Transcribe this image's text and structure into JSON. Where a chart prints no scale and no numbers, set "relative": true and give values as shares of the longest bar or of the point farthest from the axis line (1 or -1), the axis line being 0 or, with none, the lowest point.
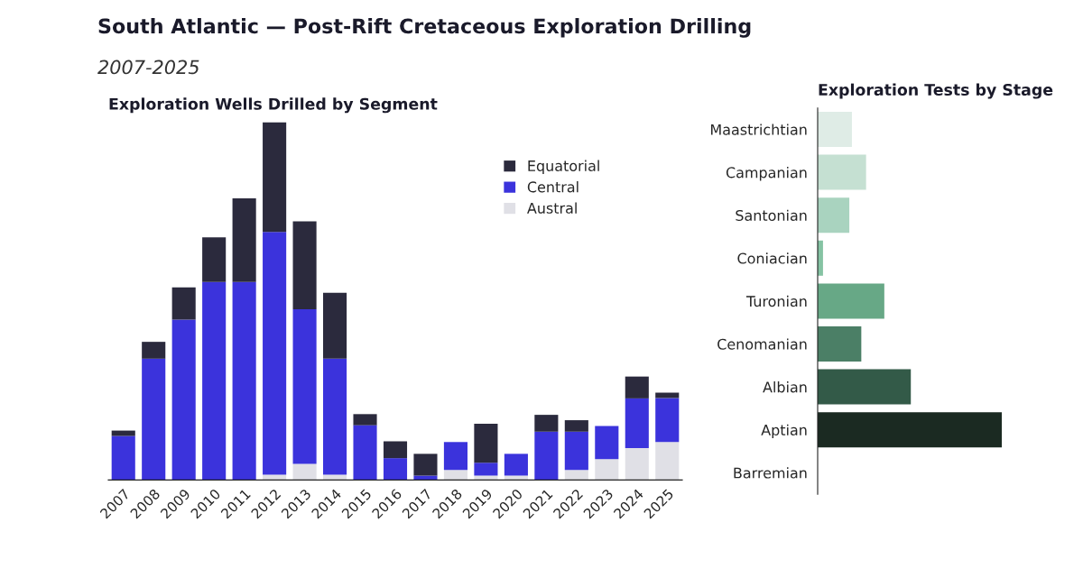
{
  "chart_data": [
    {
      "type": "other",
      "title": "South Atlantic — Post-Rift Cretaceous Exploration Drilling",
      "subtitle": "2007-2025"
    },
    {
      "type": "bar",
      "title": "Exploration Wells Drilled by Segment",
      "relative": true,
      "stacked": true,
      "legend": "top right",
      "grid": false,
      "categories": [
        "2007",
        "2008",
        "2009",
        "2010",
        "2011",
        "2012",
        "2013",
        "2014",
        "2015",
        "2016",
        "2017",
        "2018",
        "2019",
        "2020",
        "2021",
        "2022",
        "2023",
        "2024",
        "2025"
      ],
      "series": [
        {
          "name": "Austral",
          "color": "#e0e0e6",
          "values": [
            0,
            0,
            0,
            0,
            0,
            0.015,
            0.045,
            0.015,
            0,
            0,
            0,
            0.028,
            0.012,
            0.012,
            0,
            0.028,
            0.058,
            0.089,
            0.106
          ]
        },
        {
          "name": "Central",
          "color": "#3b33dc",
          "values": [
            0.123,
            0.339,
            0.448,
            0.553,
            0.553,
            0.678,
            0.432,
            0.324,
            0.153,
            0.061,
            0.012,
            0.078,
            0.036,
            0.061,
            0.135,
            0.107,
            0.093,
            0.139,
            0.123
          ]
        },
        {
          "name": "Equatorial",
          "color": "#2b2a3d",
          "values": [
            0.015,
            0.047,
            0.09,
            0.125,
            0.234,
            0.307,
            0.246,
            0.184,
            0.031,
            0.047,
            0.061,
            0,
            0.109,
            0,
            0.047,
            0.032,
            0,
            0.061,
            0.015
          ]
        }
      ]
    },
    {
      "type": "bar",
      "title": "Exploration Tests by Stage",
      "relative": true,
      "orientation": "horizontal",
      "grid": false,
      "categories": [
        "Maastrichtian",
        "Campanian",
        "Santonian",
        "Coniacian",
        "Turonian",
        "Cenomanian",
        "Albian",
        "Aptian",
        "Barremian"
      ],
      "values": [
        0.186,
        0.263,
        0.172,
        0.029,
        0.362,
        0.237,
        0.506,
        1,
        0
      ],
      "colors": [
        "#dfece6",
        "#c5e0d2",
        "#a9d3bf",
        "#85c3a3",
        "#67a886",
        "#4b7f66",
        "#335a48",
        "#1b2a22",
        "#10201a"
      ]
    }
  ]
}
